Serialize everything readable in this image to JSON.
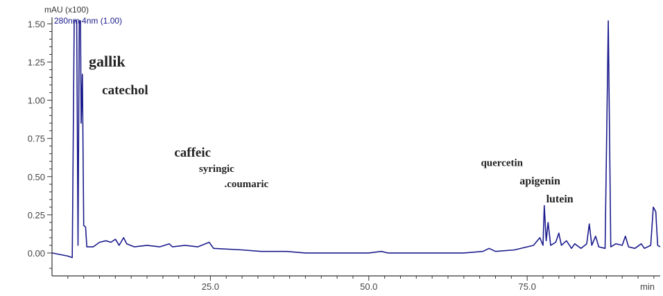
{
  "chart_data": {
    "type": "line",
    "unit_label": "mAU (x100)",
    "legend_text": "280nm,4nm (1.00)",
    "x_unit_label": "min",
    "xlim": [
      0,
      96
    ],
    "ylim": [
      -0.15,
      1.52
    ],
    "x_ticks": [
      25.0,
      50.0,
      75.0
    ],
    "x_tick_labels": [
      "25.0",
      "50.0",
      "75.0"
    ],
    "y_ticks": [
      0.0,
      0.25,
      0.5,
      0.75,
      1.0,
      1.25,
      1.5
    ],
    "y_tick_labels": [
      "0.00",
      "0.25",
      "0.50",
      "0.75",
      "1.00",
      "1.25",
      "1.50"
    ],
    "grid": false,
    "series": [
      {
        "color": "#1a1a8c",
        "points": [
          [
            0,
            0.0
          ],
          [
            2.5,
            -0.02
          ],
          [
            3.2,
            -0.03
          ],
          [
            3.5,
            1.52
          ],
          [
            3.9,
            1.52
          ],
          [
            4.1,
            0.05
          ],
          [
            4.3,
            1.52
          ],
          [
            4.5,
            1.52
          ],
          [
            4.6,
            0.85
          ],
          [
            4.8,
            1.17
          ],
          [
            5.0,
            0.18
          ],
          [
            5.3,
            0.17
          ],
          [
            5.5,
            0.04
          ],
          [
            6.5,
            0.04
          ],
          [
            7.5,
            0.07
          ],
          [
            8.5,
            0.08
          ],
          [
            9.3,
            0.07
          ],
          [
            10.0,
            0.09
          ],
          [
            10.6,
            0.05
          ],
          [
            11.3,
            0.1
          ],
          [
            11.8,
            0.06
          ],
          [
            13,
            0.04
          ],
          [
            15,
            0.05
          ],
          [
            17,
            0.04
          ],
          [
            18.5,
            0.06
          ],
          [
            19,
            0.04
          ],
          [
            21,
            0.05
          ],
          [
            23,
            0.04
          ],
          [
            24.8,
            0.07
          ],
          [
            25.5,
            0.03
          ],
          [
            30,
            0.02
          ],
          [
            33,
            0.01
          ],
          [
            37,
            0.01
          ],
          [
            40,
            0.0
          ],
          [
            45,
            0.0
          ],
          [
            50,
            0.0
          ],
          [
            52,
            0.01
          ],
          [
            53,
            0.0
          ],
          [
            60,
            0.0
          ],
          [
            65,
            0.0
          ],
          [
            68,
            0.01
          ],
          [
            69,
            0.03
          ],
          [
            70,
            0.01
          ],
          [
            73,
            0.02
          ],
          [
            76,
            0.05
          ],
          [
            77,
            0.1
          ],
          [
            77.5,
            0.05
          ],
          [
            77.7,
            0.31
          ],
          [
            78,
            0.08
          ],
          [
            78.3,
            0.2
          ],
          [
            78.7,
            0.05
          ],
          [
            79.5,
            0.07
          ],
          [
            80,
            0.13
          ],
          [
            80.4,
            0.05
          ],
          [
            81.2,
            0.08
          ],
          [
            82,
            0.03
          ],
          [
            82.5,
            0.06
          ],
          [
            83.5,
            0.03
          ],
          [
            84.4,
            0.06
          ],
          [
            84.8,
            0.19
          ],
          [
            85.2,
            0.05
          ],
          [
            85.8,
            0.11
          ],
          [
            86.3,
            0.04
          ],
          [
            87.3,
            0.03
          ],
          [
            87.8,
            1.52
          ],
          [
            88.2,
            0.04
          ],
          [
            89,
            0.06
          ],
          [
            90,
            0.05
          ],
          [
            90.5,
            0.11
          ],
          [
            91,
            0.04
          ],
          [
            92,
            0.03
          ],
          [
            93,
            0.06
          ],
          [
            93.5,
            0.03
          ],
          [
            94.5,
            0.05
          ],
          [
            94.9,
            0.3
          ],
          [
            95.3,
            0.27
          ],
          [
            95.6,
            0.05
          ],
          [
            96,
            0.04
          ]
        ]
      }
    ],
    "annotations": [
      {
        "text": "gallik",
        "x": 5.8,
        "y": 1.22,
        "size": 22
      },
      {
        "text": "catechol",
        "x": 7.9,
        "y": 1.04,
        "size": 19
      },
      {
        "text": "caffeic",
        "x": 19.3,
        "y": 0.63,
        "size": 19
      },
      {
        "text": "syringic",
        "x": 23.2,
        "y": 0.53,
        "size": 15
      },
      {
        "text": ".coumaric",
        "x": 27.2,
        "y": 0.43,
        "size": 15
      },
      {
        "text": "quercetin",
        "x": 67.7,
        "y": 0.57,
        "size": 15
      },
      {
        "text": "apigenin",
        "x": 73.8,
        "y": 0.45,
        "size": 16
      },
      {
        "text": "lutein",
        "x": 78.0,
        "y": 0.33,
        "size": 16
      }
    ]
  }
}
